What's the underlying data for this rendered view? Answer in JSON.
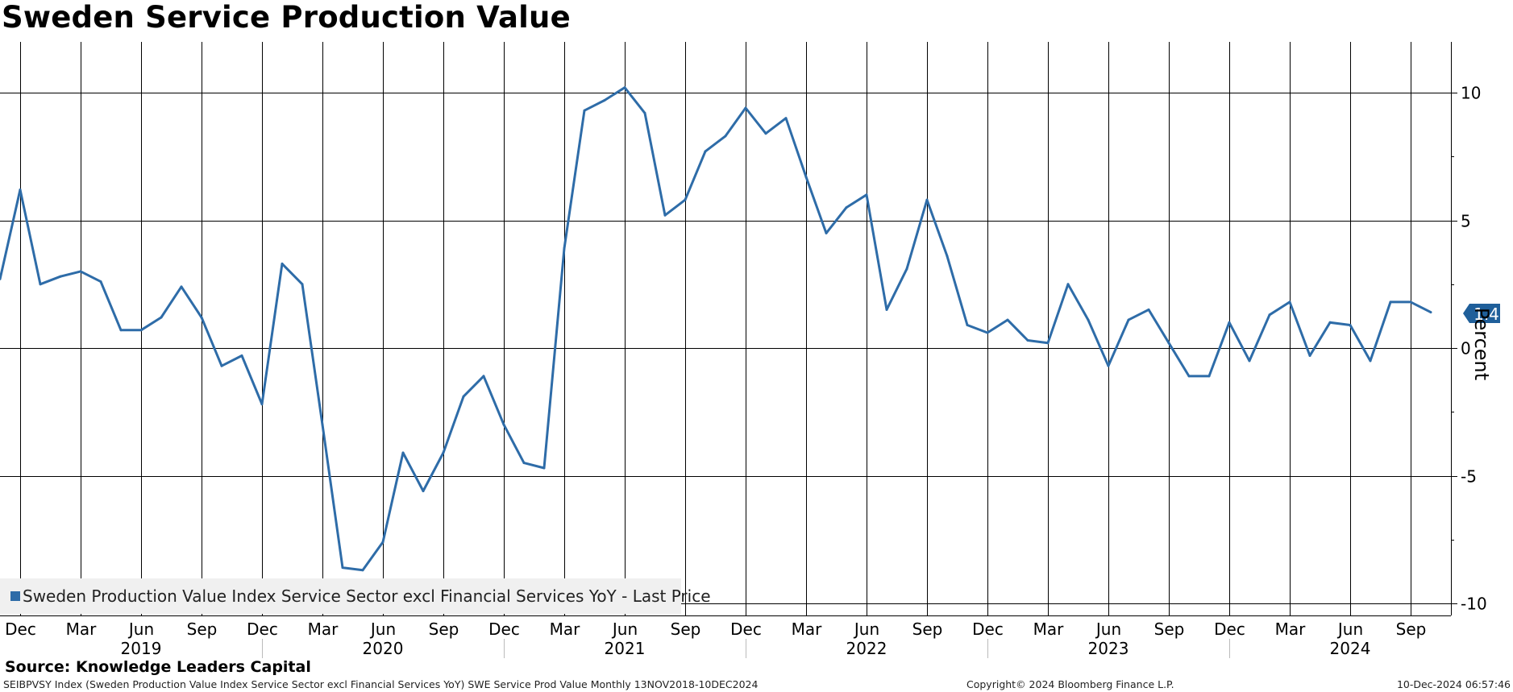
{
  "title": "Sweden Service Production Value",
  "chart_data": {
    "type": "line",
    "title": "Sweden Service Production Value",
    "ylabel": "Percent",
    "ylim": [
      -10.5,
      12
    ],
    "yticks": [
      10,
      5,
      0,
      -5,
      -10
    ],
    "x_month_ticks": [
      "Dec",
      "Mar",
      "Jun",
      "Sep",
      "Dec",
      "Mar",
      "Jun",
      "Sep",
      "Dec",
      "Mar",
      "Jun",
      "Sep",
      "Dec",
      "Mar",
      "Jun",
      "Sep",
      "Dec",
      "Mar",
      "Jun",
      "Sep",
      "Dec",
      "Mar",
      "Jun",
      "Sep"
    ],
    "x_year_labels": [
      "2019",
      "2020",
      "2021",
      "2022",
      "2023",
      "2024"
    ],
    "series": [
      {
        "name": "Sweden Production Value Index Service Sector excl Financial Services YoY - Last Price",
        "color": "#2e6ca8",
        "start": "2018-11",
        "end": "2024-10",
        "values": [
          2.7,
          6.2,
          2.5,
          2.8,
          3.0,
          2.6,
          0.7,
          0.7,
          1.2,
          2.4,
          1.2,
          -0.7,
          -0.3,
          -2.2,
          3.3,
          2.5,
          -3.0,
          -8.6,
          -8.7,
          -7.6,
          -4.1,
          -5.6,
          -4.1,
          -1.9,
          -1.1,
          -3.0,
          -4.5,
          -4.7,
          3.9,
          9.3,
          9.7,
          10.2,
          9.2,
          5.2,
          5.8,
          7.7,
          8.3,
          9.4,
          8.4,
          9.0,
          6.7,
          4.5,
          5.5,
          6.0,
          1.5,
          3.1,
          5.8,
          3.6,
          0.9,
          0.6,
          1.1,
          0.3,
          0.2,
          2.5,
          1.1,
          -0.7,
          1.1,
          1.5,
          0.2,
          -1.1,
          -1.1,
          1.0,
          -0.5,
          1.3,
          1.8,
          -0.3,
          1.0,
          0.9,
          -0.5,
          1.8,
          1.8,
          1.4
        ]
      }
    ],
    "last_value_label": "1.4"
  },
  "legend": {
    "label": "Sweden Production Value Index Service Sector excl Financial Services YoY - Last Price"
  },
  "source": "Source: Knowledge Leaders Capital",
  "footer": {
    "left": "SEIBPVSY Index (Sweden Production Value Index Service Sector excl Financial Services YoY) SWE Service Prod Value  Monthly 13NOV2018-10DEC2024",
    "middle": "Copyright© 2024 Bloomberg Finance L.P.",
    "right": "10-Dec-2024 06:57:46"
  }
}
